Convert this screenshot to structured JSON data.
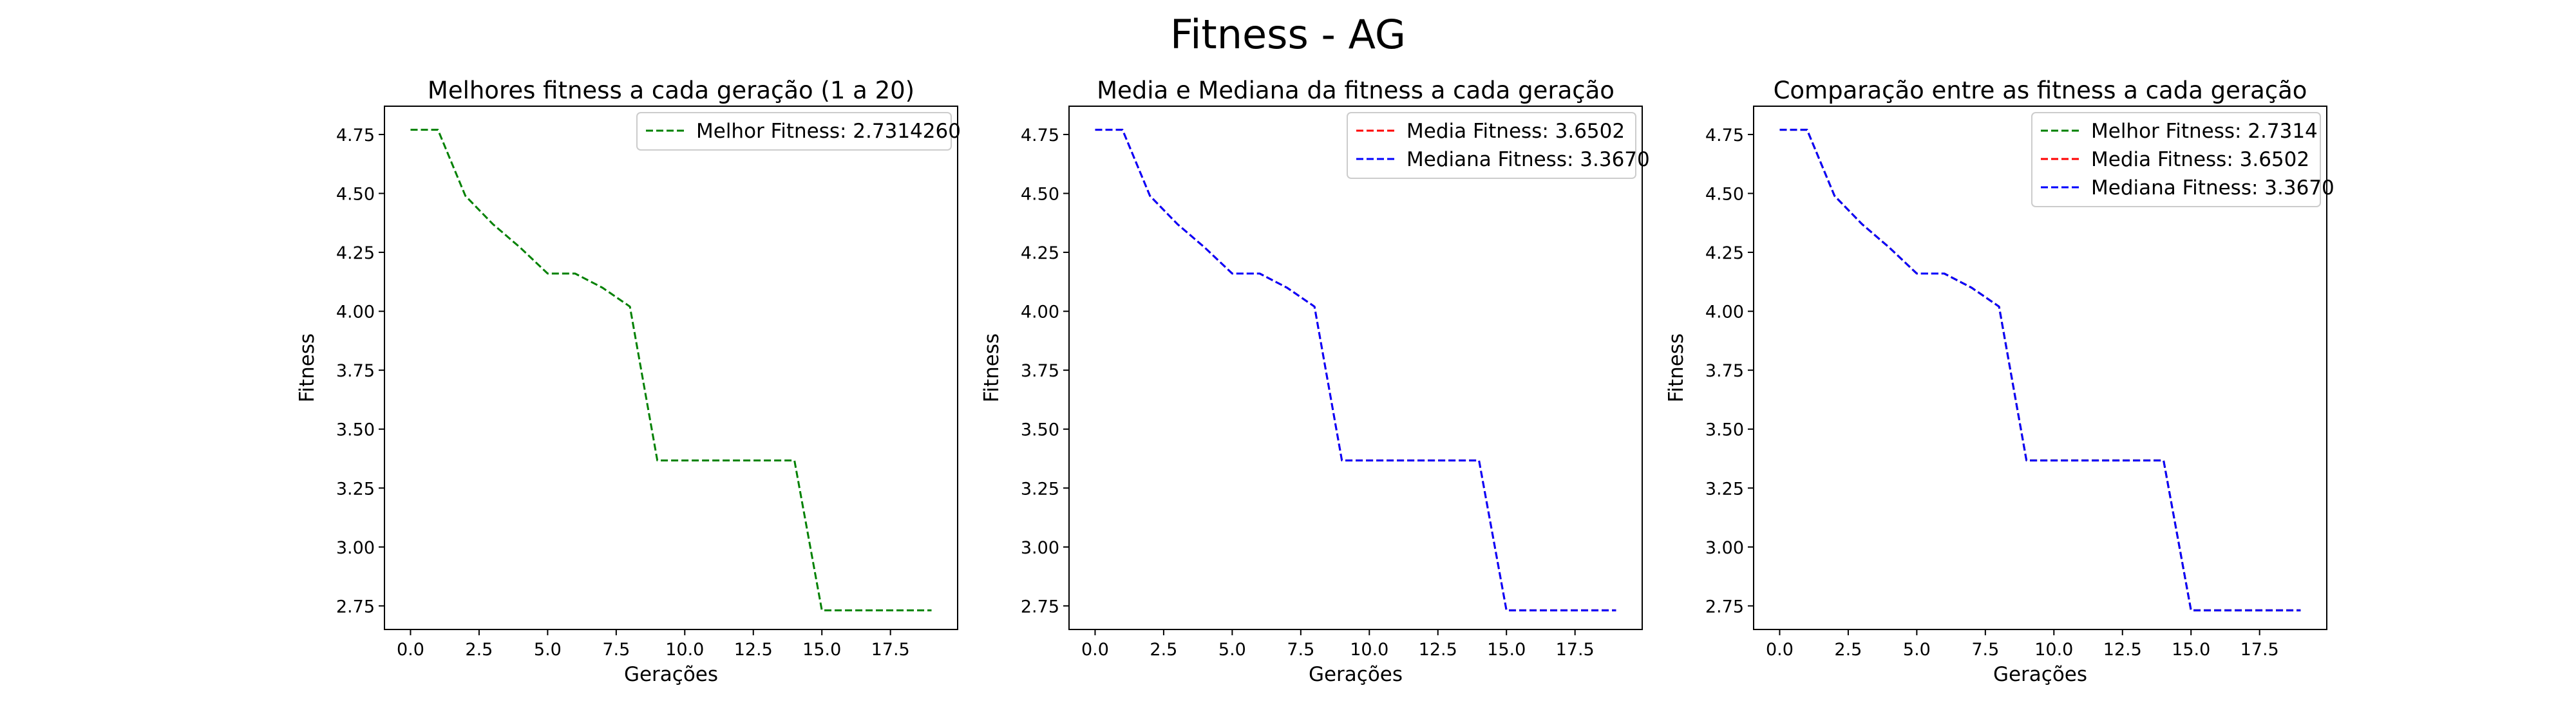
{
  "figure": {
    "suptitle": "Fitness - AG"
  },
  "chart_data": [
    {
      "type": "line",
      "title": "Melhores fitness a cada geração (1 a 20)",
      "xlabel": "Gerações",
      "ylabel": "Fitness",
      "xlim": [
        -0.95,
        19.95
      ],
      "ylim": [
        2.65,
        4.87
      ],
      "xticks": [
        0.0,
        2.5,
        5.0,
        7.5,
        10.0,
        12.5,
        15.0,
        17.5
      ],
      "xtick_labels": [
        "0.0",
        "2.5",
        "5.0",
        "7.5",
        "10.0",
        "12.5",
        "15.0",
        "17.5"
      ],
      "yticks": [
        2.75,
        3.0,
        3.25,
        3.5,
        3.75,
        4.0,
        4.25,
        4.5,
        4.75
      ],
      "ytick_labels": [
        "2.75",
        "3.00",
        "3.25",
        "3.50",
        "3.75",
        "4.00",
        "4.25",
        "4.50",
        "4.75"
      ],
      "grid": false,
      "legend_position": "top-right",
      "x": [
        0,
        1,
        2,
        3,
        4,
        5,
        6,
        7,
        8,
        9,
        10,
        11,
        12,
        13,
        14,
        15,
        16,
        17,
        18,
        19
      ],
      "series": [
        {
          "name": "Melhor Fitness: 2.7314260",
          "color": "#008000",
          "dash": "dashed",
          "values": [
            4.77,
            4.77,
            4.49,
            4.37,
            4.27,
            4.16,
            4.16,
            4.1,
            4.02,
            3.367,
            3.367,
            3.367,
            3.367,
            3.367,
            3.367,
            2.7314,
            2.7314,
            2.7314,
            2.7314,
            2.7314
          ]
        }
      ]
    },
    {
      "type": "line",
      "title": "Media e Mediana da fitness a cada geração",
      "xlabel": "Gerações",
      "ylabel": "Fitness",
      "xlim": [
        -0.95,
        19.95
      ],
      "ylim": [
        2.65,
        4.87
      ],
      "xticks": [
        0.0,
        2.5,
        5.0,
        7.5,
        10.0,
        12.5,
        15.0,
        17.5
      ],
      "xtick_labels": [
        "0.0",
        "2.5",
        "5.0",
        "7.5",
        "10.0",
        "12.5",
        "15.0",
        "17.5"
      ],
      "yticks": [
        2.75,
        3.0,
        3.25,
        3.5,
        3.75,
        4.0,
        4.25,
        4.5,
        4.75
      ],
      "ytick_labels": [
        "2.75",
        "3.00",
        "3.25",
        "3.50",
        "3.75",
        "4.00",
        "4.25",
        "4.50",
        "4.75"
      ],
      "grid": false,
      "legend_position": "top-right",
      "x": [
        0,
        1,
        2,
        3,
        4,
        5,
        6,
        7,
        8,
        9,
        10,
        11,
        12,
        13,
        14,
        15,
        16,
        17,
        18,
        19
      ],
      "series": [
        {
          "name": "Media Fitness: 3.6502",
          "color": "#ff0000",
          "dash": "dashed",
          "values": [
            4.77,
            4.77,
            4.49,
            4.37,
            4.27,
            4.16,
            4.16,
            4.1,
            4.02,
            3.367,
            3.367,
            3.367,
            3.367,
            3.367,
            3.367,
            2.7314,
            2.7314,
            2.7314,
            2.7314,
            2.7314
          ]
        },
        {
          "name": "Mediana Fitness: 3.3670",
          "color": "#0000ff",
          "dash": "dashed",
          "values": [
            4.77,
            4.77,
            4.49,
            4.37,
            4.27,
            4.16,
            4.16,
            4.1,
            4.02,
            3.367,
            3.367,
            3.367,
            3.367,
            3.367,
            3.367,
            2.7314,
            2.7314,
            2.7314,
            2.7314,
            2.7314
          ]
        }
      ]
    },
    {
      "type": "line",
      "title": "Comparação entre as fitness a cada geração",
      "xlabel": "Gerações",
      "ylabel": "Fitness",
      "xlim": [
        -0.95,
        19.95
      ],
      "ylim": [
        2.65,
        4.87
      ],
      "xticks": [
        0.0,
        2.5,
        5.0,
        7.5,
        10.0,
        12.5,
        15.0,
        17.5
      ],
      "xtick_labels": [
        "0.0",
        "2.5",
        "5.0",
        "7.5",
        "10.0",
        "12.5",
        "15.0",
        "17.5"
      ],
      "yticks": [
        2.75,
        3.0,
        3.25,
        3.5,
        3.75,
        4.0,
        4.25,
        4.5,
        4.75
      ],
      "ytick_labels": [
        "2.75",
        "3.00",
        "3.25",
        "3.50",
        "3.75",
        "4.00",
        "4.25",
        "4.50",
        "4.75"
      ],
      "grid": false,
      "legend_position": "top-right",
      "x": [
        0,
        1,
        2,
        3,
        4,
        5,
        6,
        7,
        8,
        9,
        10,
        11,
        12,
        13,
        14,
        15,
        16,
        17,
        18,
        19
      ],
      "series": [
        {
          "name": "Melhor Fitness: 2.7314",
          "color": "#008000",
          "dash": "dashed",
          "values": [
            4.77,
            4.77,
            4.49,
            4.37,
            4.27,
            4.16,
            4.16,
            4.1,
            4.02,
            3.367,
            3.367,
            3.367,
            3.367,
            3.367,
            3.367,
            2.7314,
            2.7314,
            2.7314,
            2.7314,
            2.7314
          ]
        },
        {
          "name": "Media Fitness: 3.6502",
          "color": "#ff0000",
          "dash": "dashed",
          "values": [
            4.77,
            4.77,
            4.49,
            4.37,
            4.27,
            4.16,
            4.16,
            4.1,
            4.02,
            3.367,
            3.367,
            3.367,
            3.367,
            3.367,
            3.367,
            2.7314,
            2.7314,
            2.7314,
            2.7314,
            2.7314
          ]
        },
        {
          "name": "Mediana Fitness: 3.3670",
          "color": "#0000ff",
          "dash": "dashed",
          "values": [
            4.77,
            4.77,
            4.49,
            4.37,
            4.27,
            4.16,
            4.16,
            4.1,
            4.02,
            3.367,
            3.367,
            3.367,
            3.367,
            3.367,
            3.367,
            2.7314,
            2.7314,
            2.7314,
            2.7314,
            2.7314
          ]
        }
      ]
    }
  ]
}
